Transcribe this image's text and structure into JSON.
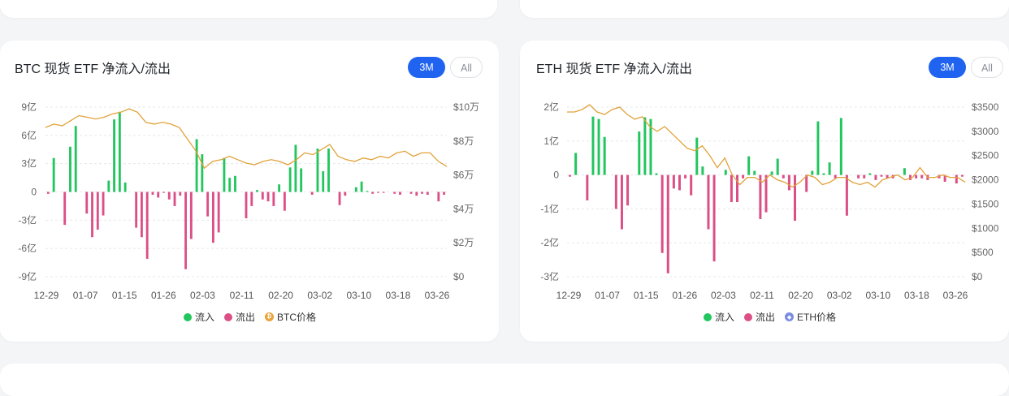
{
  "colors": {
    "inflow": "#22c55e",
    "outflow": "#db4f86",
    "btc_price": "#e1a23a",
    "eth_price": "#e1a23a",
    "eth_icon": "#7b8de0",
    "active_tab": "#1f63f0"
  },
  "tabs": [
    "3M",
    "All"
  ],
  "x_ticks": [
    "12-29",
    "01-07",
    "01-15",
    "01-26",
    "02-03",
    "02-11",
    "02-20",
    "03-02",
    "03-10",
    "03-18",
    "03-26"
  ],
  "btc": {
    "title": "BTC 现货 ETF 净流入/流出",
    "legend": {
      "inflow": "流入",
      "outflow": "流出",
      "price": "BTC价格",
      "price_icon": "bitcoin-icon"
    },
    "chart_data": {
      "type": "bar",
      "title": "BTC 现货 ETF 净流入/流出",
      "unit_left": "亿",
      "unit_right": "万",
      "left_ticks": [
        "9亿",
        "6亿",
        "3亿",
        "0",
        "-3亿",
        "-6亿",
        "-9亿"
      ],
      "right_ticks": [
        "$10万",
        "$8万",
        "$6万",
        "$4万",
        "$2万",
        "$0"
      ],
      "ylim_left": [
        -9,
        9
      ],
      "ylim_right": [
        0,
        10
      ],
      "x_ticks": [
        "12-29",
        "01-07",
        "01-15",
        "01-26",
        "02-03",
        "02-11",
        "02-20",
        "03-02",
        "03-10",
        "03-18",
        "03-26"
      ],
      "flows": [
        -0.2,
        3.6,
        0,
        -3.5,
        4.8,
        7.0,
        0,
        -2.3,
        -4.8,
        -4.0,
        -2.5,
        1.2,
        7.7,
        8.5,
        1.0,
        0,
        -3.8,
        -4.8,
        -7.1,
        -0.3,
        -0.6,
        -0.1,
        -0.8,
        -1.5,
        -0.4,
        -8.2,
        -5.0,
        5.6,
        4.0,
        -2.6,
        -5.4,
        -4.3,
        3.6,
        1.5,
        1.7,
        0,
        -2.8,
        -1.5,
        0.2,
        -0.8,
        -1.0,
        -1.5,
        0.8,
        -2.0,
        2.6,
        5.0,
        2.5,
        0,
        -0.3,
        4.6,
        2.2,
        4.6,
        0,
        -1.4,
        -0.4,
        0,
        0.5,
        1.1,
        0.1,
        -0.2,
        -0.1,
        -0.1,
        0,
        -0.2,
        -0.3,
        0,
        -0.2,
        -0.4,
        -0.2,
        -0.3,
        0,
        -1.0,
        -0.3
      ],
      "price": [
        8.8,
        9.0,
        8.9,
        9.2,
        9.5,
        9.4,
        9.3,
        9.4,
        9.6,
        9.7,
        9.9,
        9.7,
        9.1,
        9.0,
        9.1,
        9.0,
        8.8,
        8.1,
        7.4,
        6.4,
        6.8,
        6.9,
        7.1,
        6.9,
        6.7,
        6.6,
        6.8,
        6.9,
        6.8,
        6.6,
        6.9,
        7.3,
        7.2,
        7.5,
        7.8,
        7.1,
        6.9,
        6.8,
        7.0,
        6.9,
        7.1,
        7.0,
        7.3,
        7.4,
        7.1,
        7.3,
        7.3,
        6.8,
        6.5
      ]
    }
  },
  "eth": {
    "title": "ETH 现货 ETF 净流入/流出",
    "legend": {
      "inflow": "流入",
      "outflow": "流出",
      "price": "ETH价格",
      "price_icon": "ethereum-icon"
    },
    "chart_data": {
      "type": "bar",
      "title": "ETH 现货 ETF 净流入/流出",
      "unit_left": "亿",
      "left_ticks": [
        "2亿",
        "1亿",
        "0",
        "-1亿",
        "-2亿",
        "-3亿"
      ],
      "right_ticks": [
        "$3500",
        "$3000",
        "$2500",
        "$2000",
        "$1500",
        "$1000",
        "$500",
        "$0"
      ],
      "ylim_left": [
        -3,
        2
      ],
      "ylim_right": [
        0,
        3500
      ],
      "x_ticks": [
        "12-29",
        "01-07",
        "01-15",
        "01-26",
        "02-03",
        "02-11",
        "02-20",
        "03-02",
        "03-10",
        "03-18",
        "03-26"
      ],
      "flows": [
        -0.05,
        0.65,
        0,
        -0.75,
        1.72,
        1.65,
        1.12,
        0,
        -1.0,
        -1.6,
        -0.9,
        0,
        1.28,
        1.7,
        1.65,
        0.05,
        -2.3,
        -2.9,
        -0.4,
        -0.45,
        -0.1,
        -0.6,
        1.1,
        0.25,
        -1.6,
        -2.55,
        0,
        0.15,
        -0.8,
        -0.8,
        -0.1,
        0.55,
        0.12,
        -1.3,
        -1.1,
        0.1,
        0.48,
        -0.1,
        -0.45,
        -1.35,
        0,
        -0.5,
        0.12,
        1.58,
        0.05,
        0.37,
        -0.1,
        1.68,
        -1.2,
        0,
        -0.1,
        -0.1,
        0.05,
        -0.15,
        -0.05,
        -0.1,
        -0.1,
        0,
        0.2,
        -0.15,
        -0.1,
        -0.1,
        -0.15,
        0,
        -0.1,
        -0.2,
        0,
        -0.25,
        -0.05
      ],
      "price": [
        3400,
        3400,
        3450,
        3550,
        3400,
        3350,
        3450,
        3500,
        3350,
        3250,
        3300,
        3100,
        3000,
        3100,
        2950,
        2800,
        2650,
        2600,
        2700,
        2500,
        2250,
        2450,
        2100,
        1900,
        2050,
        2050,
        1950,
        2100,
        2000,
        1950,
        1850,
        1950,
        2100,
        2050,
        1900,
        1950,
        2050,
        2050,
        1950,
        1900,
        1950,
        1850,
        2000,
        2050,
        2100,
        2000,
        2050,
        2250,
        2050,
        2050,
        2100,
        2050,
        2050,
        1950
      ]
    }
  }
}
